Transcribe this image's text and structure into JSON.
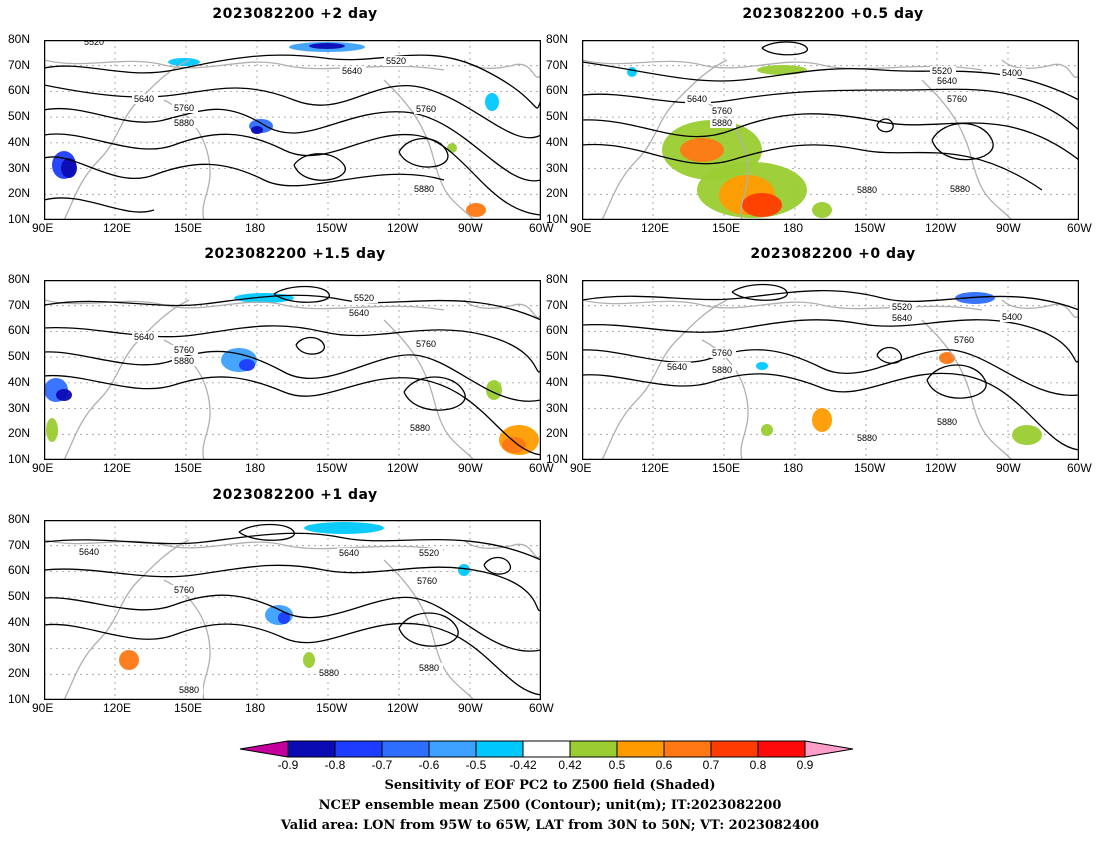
{
  "panels": [
    {
      "id": "p1",
      "title": "2023082200  +2  day",
      "contours": [
        "5520",
        "5520",
        "5640",
        "5640",
        "5760",
        "5760",
        "5880",
        "5880"
      ]
    },
    {
      "id": "p2",
      "title": "2023082200  +0.5  day",
      "contours": [
        "5520",
        "5400",
        "5640",
        "5640",
        "5760",
        "5760",
        "5880",
        "5880",
        "5880"
      ]
    },
    {
      "id": "p3",
      "title": "2023082200  +1.5  day",
      "contours": [
        "5520",
        "5640",
        "5640",
        "5760",
        "5760",
        "5880",
        "5880"
      ]
    },
    {
      "id": "p4",
      "title": "2023082200  +0  day",
      "contours": [
        "5520",
        "5640",
        "5400",
        "5640",
        "5760",
        "5760",
        "5880",
        "5880",
        "5880"
      ]
    },
    {
      "id": "p5",
      "title": "2023082200  +1  day",
      "contours": [
        "5640",
        "5640",
        "5520",
        "5760",
        "5760",
        "5880",
        "5880",
        "5880"
      ]
    }
  ],
  "lat_ticks": [
    "80N",
    "70N",
    "60N",
    "50N",
    "40N",
    "30N",
    "20N",
    "10N"
  ],
  "lon_ticks": [
    "90E",
    "120E",
    "150E",
    "180",
    "150W",
    "120W",
    "90W",
    "60W"
  ],
  "colorbar": {
    "labels": [
      "-0.9",
      "-0.8",
      "-0.7",
      "-0.6",
      "-0.5",
      "-0.42",
      "0.42",
      "0.5",
      "0.6",
      "0.7",
      "0.8",
      "0.9"
    ],
    "colors": [
      "#0b0bb4",
      "#1e3cff",
      "#2e6eff",
      "#3ba0ff",
      "#00c8ff",
      "#ffffff",
      "#9acd32",
      "#ff9b00",
      "#ff7814",
      "#ff3c00",
      "#ff0a0a"
    ],
    "low_end_color": "#c4009c",
    "high_end_color": "#ff9ec8"
  },
  "caption": {
    "line1": "Sensitivity of EOF PC2 to Z500 field (Shaded)",
    "line2": "NCEP ensemble mean Z500 (Contour); unit(m); IT:2023082200",
    "line3": "Valid area: LON from 95W to 65W, LAT from 30N to 50N; VT: 2023082400"
  }
}
